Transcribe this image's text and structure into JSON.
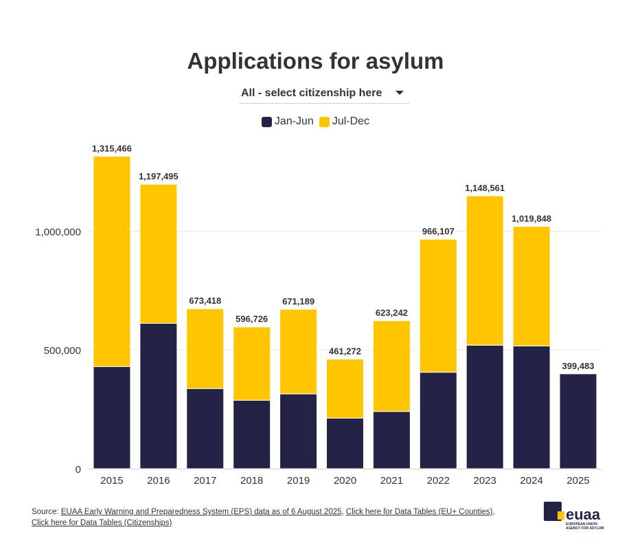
{
  "header": {
    "title": "Applications for asylum",
    "selector_label": "All - select citizenship here"
  },
  "colors": {
    "jan_jun": "#232445",
    "jul_dec": "#ffc600",
    "grid": "#e6e6e6",
    "axis_text": "#333333"
  },
  "chart_data": {
    "type": "bar",
    "stacked": true,
    "title": "Applications for asylum",
    "categories": [
      "2015",
      "2016",
      "2017",
      "2018",
      "2019",
      "2020",
      "2021",
      "2022",
      "2023",
      "2024",
      "2025"
    ],
    "series": [
      {
        "name": "Jan-Jun",
        "values": [
          430000,
          612000,
          337000,
          288000,
          315000,
          213000,
          241000,
          406000,
          520000,
          517000,
          399483
        ]
      },
      {
        "name": "Jul-Dec",
        "values": [
          885466,
          585495,
          336418,
          308726,
          356189,
          248272,
          382242,
          560107,
          628561,
          502848,
          0
        ]
      }
    ],
    "totals_labels": [
      "1,315,466",
      "1,197,495",
      "673,418",
      "596,726",
      "671,189",
      "461,272",
      "623,242",
      "966,107",
      "1,148,561",
      "1,019,848",
      "399,483"
    ],
    "y_ticks": [
      {
        "value": 0,
        "label": "0"
      },
      {
        "value": 500000,
        "label": "500,000"
      },
      {
        "value": 1000000,
        "label": "1,000,000"
      }
    ],
    "ylim": [
      0,
      1380000
    ],
    "grid": true,
    "legend_placement": "top-center"
  },
  "footer": {
    "source_prefix": "Source: ",
    "source_link": "EUAA Early Warning and Preparedness System (EPS) data as of 6 August 2025",
    "separator": ", ",
    "link_countries": "Click here for Data Tables (EU+ Counties)",
    "link_citizenships": "Click here for Data Tables (Citizenships)",
    "logo_word": "euaa",
    "logo_sub_1": "EUROPEAN UNION",
    "logo_sub_2": "AGENCY FOR ASYLUM"
  }
}
